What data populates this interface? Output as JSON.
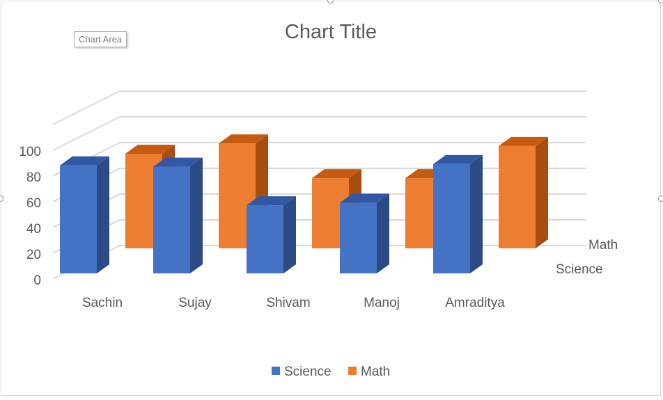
{
  "tooltip": {
    "label": "Chart Area"
  },
  "colors": {
    "science_front": "#4472c4",
    "science_top": "#3358a3",
    "science_side": "#2b4a86",
    "math_front": "#ed7d31",
    "math_top": "#c55a11",
    "math_side": "#a84d0f",
    "grid": "#d9d9d9",
    "text": "#595959"
  },
  "chart_data": {
    "type": "bar",
    "title": "Chart Title",
    "categories": [
      "Sachin",
      "Sujay",
      "Shivam",
      "Manoj",
      "Amraditya"
    ],
    "series": [
      {
        "name": "Science",
        "values": [
          85,
          84,
          54,
          56,
          86
        ]
      },
      {
        "name": "Math",
        "values": [
          80,
          88,
          61,
          61,
          86
        ]
      }
    ],
    "yticks": [
      "0",
      "20",
      "40",
      "60",
      "80",
      "100"
    ],
    "ylim": [
      0,
      120
    ],
    "grid": true,
    "legend": "bottom"
  }
}
